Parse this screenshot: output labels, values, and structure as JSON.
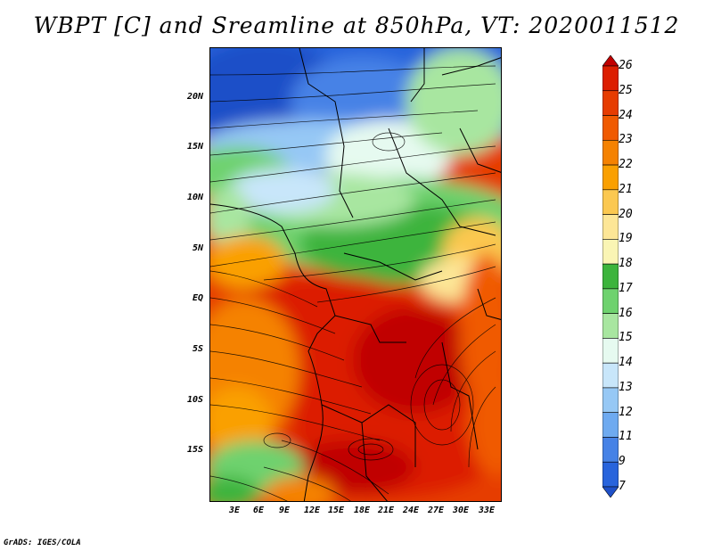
{
  "title": "WBPT [C] and Sreamline at 850hPa, VT: 2020011512",
  "credit": "GrADS: IGES/COLA",
  "map": {
    "lat_labels": [
      "20N",
      "15N",
      "10N",
      "5N",
      "EQ",
      "5S",
      "10S",
      "15S"
    ],
    "lon_labels": [
      "3E",
      "6E",
      "9E",
      "12E",
      "15E",
      "18E",
      "21E",
      "24E",
      "27E",
      "30E",
      "33E"
    ]
  },
  "colorbar": {
    "labels": [
      "26",
      "25",
      "24",
      "23",
      "22",
      "21",
      "20",
      "19",
      "18",
      "17",
      "16",
      "15",
      "14",
      "13",
      "12",
      "11",
      "9",
      "7"
    ],
    "colors": [
      "#c00000",
      "#dc1e00",
      "#e63c00",
      "#f05a00",
      "#f58200",
      "#faa000",
      "#fbc850",
      "#fde696",
      "#faf5b4",
      "#3cb43c",
      "#6ed26e",
      "#a8e6a0",
      "#e6faf0",
      "#c8e6fa",
      "#96c8f5",
      "#6eaaf0",
      "#4682e6",
      "#2864dc",
      "#1e50c8"
    ]
  }
}
